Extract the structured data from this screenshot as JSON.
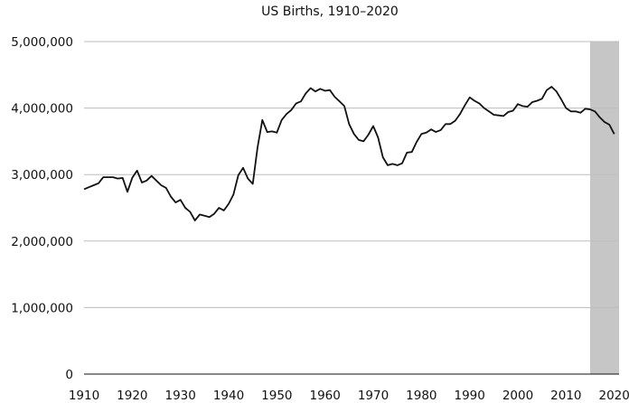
{
  "chart_data": {
    "type": "line",
    "title": "US Births, 1910–2020",
    "xlabel": "",
    "ylabel": "",
    "xlim": [
      1910,
      2021
    ],
    "ylim": [
      0,
      5000000
    ],
    "grid": true,
    "x_ticks": [
      1910,
      1920,
      1930,
      1940,
      1950,
      1960,
      1970,
      1980,
      1990,
      2000,
      2010,
      2020
    ],
    "y_ticks": [
      0,
      1000000,
      2000000,
      3000000,
      4000000,
      5000000
    ],
    "y_tick_labels": [
      "0",
      "1,000,000",
      "2,000,000",
      "3,000,000",
      "4,000,000",
      "5,000,000"
    ],
    "shaded_region": {
      "x_start": 2015,
      "x_end": 2021,
      "color": "#c6c6c6"
    },
    "colors": {
      "line": "#111111",
      "grid": "#bdbdbd",
      "axis": "#111111"
    },
    "series": [
      {
        "name": "",
        "x": [
          1910,
          1911,
          1912,
          1913,
          1914,
          1915,
          1916,
          1917,
          1918,
          1919,
          1920,
          1921,
          1922,
          1923,
          1924,
          1925,
          1926,
          1927,
          1928,
          1929,
          1930,
          1931,
          1932,
          1933,
          1934,
          1935,
          1936,
          1937,
          1938,
          1939,
          1940,
          1941,
          1942,
          1943,
          1944,
          1945,
          1946,
          1947,
          1948,
          1949,
          1950,
          1951,
          1952,
          1953,
          1954,
          1955,
          1956,
          1957,
          1958,
          1959,
          1960,
          1961,
          1962,
          1963,
          1964,
          1965,
          1966,
          1967,
          1968,
          1969,
          1970,
          1971,
          1972,
          1973,
          1974,
          1975,
          1976,
          1977,
          1978,
          1979,
          1980,
          1981,
          1982,
          1983,
          1984,
          1985,
          1986,
          1987,
          1988,
          1989,
          1990,
          1991,
          1992,
          1993,
          1994,
          1995,
          1996,
          1997,
          1998,
          1999,
          2000,
          2001,
          2002,
          2003,
          2004,
          2005,
          2006,
          2007,
          2008,
          2009,
          2010,
          2011,
          2012,
          2013,
          2014,
          2015,
          2016,
          2017,
          2018,
          2019,
          2020
        ],
        "values": [
          2780000,
          2810000,
          2840000,
          2870000,
          2960000,
          2960000,
          2960000,
          2940000,
          2950000,
          2740000,
          2950000,
          3060000,
          2880000,
          2910000,
          2980000,
          2910000,
          2840000,
          2800000,
          2670000,
          2580000,
          2620000,
          2500000,
          2440000,
          2310000,
          2400000,
          2380000,
          2360000,
          2410000,
          2500000,
          2460000,
          2560000,
          2700000,
          2990000,
          3100000,
          2940000,
          2860000,
          3410000,
          3820000,
          3640000,
          3650000,
          3630000,
          3820000,
          3910000,
          3970000,
          4070000,
          4100000,
          4220000,
          4300000,
          4250000,
          4290000,
          4260000,
          4270000,
          4170000,
          4100000,
          4030000,
          3760000,
          3610000,
          3520000,
          3500000,
          3600000,
          3730000,
          3560000,
          3260000,
          3140000,
          3160000,
          3140000,
          3170000,
          3330000,
          3340000,
          3490000,
          3610000,
          3630000,
          3680000,
          3640000,
          3670000,
          3760000,
          3760000,
          3810000,
          3910000,
          4040000,
          4160000,
          4110000,
          4070000,
          4000000,
          3950000,
          3900000,
          3890000,
          3880000,
          3940000,
          3960000,
          4060000,
          4030000,
          4020000,
          4090000,
          4110000,
          4140000,
          4270000,
          4320000,
          4250000,
          4130000,
          4000000,
          3950000,
          3950000,
          3930000,
          3990000,
          3980000,
          3950000,
          3860000,
          3790000,
          3750000,
          3610000
        ]
      }
    ]
  }
}
